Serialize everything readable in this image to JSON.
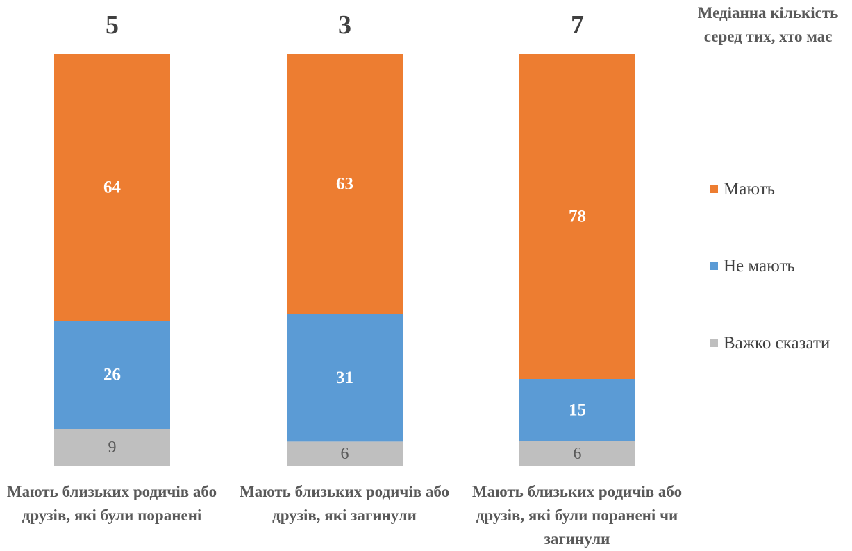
{
  "chart_data": {
    "type": "bar",
    "stacked": true,
    "percent_stacked": true,
    "categories": [
      "Мають близьких родичів або друзів, які були поранені",
      "Мають близьких родичів або друзів, які загинули",
      "Мають близьких родичів або друзів, які були поранені чи загинули"
    ],
    "series": [
      {
        "name": "Мають",
        "color": "#ED7D31",
        "values": [
          64,
          63,
          78
        ]
      },
      {
        "name": "Не мають",
        "color": "#5B9BD5",
        "values": [
          26,
          31,
          15
        ]
      },
      {
        "name": "Важко сказати",
        "color": "#BFBFBF",
        "values": [
          9,
          6,
          6
        ]
      }
    ],
    "median": {
      "title": "Медіанна кількість серед тих, хто має",
      "values": [
        5,
        3,
        7
      ]
    },
    "legend_position": "right",
    "grid": false
  }
}
